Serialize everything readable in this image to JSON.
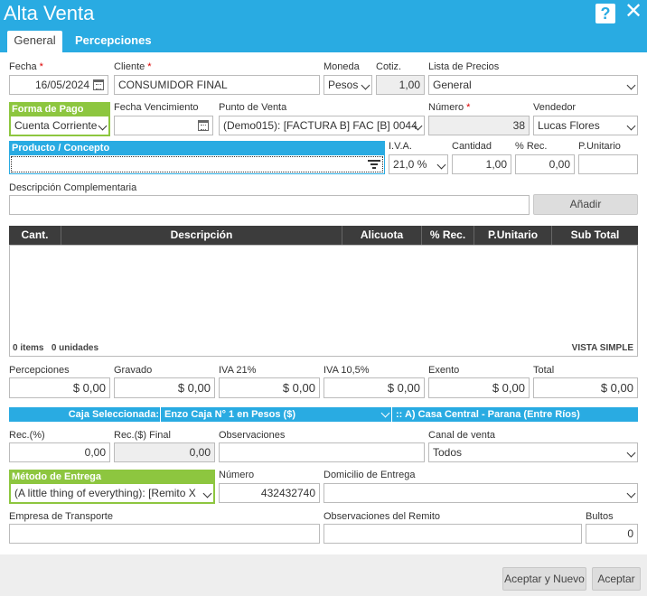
{
  "window": {
    "title": "Alta Venta"
  },
  "tabs": [
    {
      "label": "General"
    },
    {
      "label": "Percepciones"
    }
  ],
  "fields": {
    "fecha": {
      "label": "Fecha",
      "value": "16/05/2024"
    },
    "cliente": {
      "label": "Cliente",
      "value": "CONSUMIDOR FINAL"
    },
    "moneda": {
      "label": "Moneda",
      "value": "Pesos"
    },
    "cotiz": {
      "label": "Cotiz.",
      "value": "1,00"
    },
    "lista_precios": {
      "label": "Lista de Precios",
      "value": "General"
    },
    "forma_pago": {
      "label": "Forma de Pago",
      "value": "Cuenta Corriente"
    },
    "fecha_vencimiento": {
      "label": "Fecha Vencimiento",
      "value": ""
    },
    "punto_venta": {
      "label": "Punto de Venta",
      "value": "(Demo015): [FACTURA B] FAC [B] 0044"
    },
    "numero": {
      "label": "Número",
      "value": "38"
    },
    "vendedor": {
      "label": "Vendedor",
      "value": "Lucas Flores"
    },
    "producto": {
      "label": "Producto / Concepto",
      "value": ""
    },
    "iva": {
      "label": "I.V.A.",
      "value": "21,0 %"
    },
    "cantidad": {
      "label": "Cantidad",
      "value": "1,00"
    },
    "rec": {
      "label": "% Rec.",
      "value": "0,00"
    },
    "punitario": {
      "label": "P.Unitario",
      "value": ""
    },
    "desc_comp": {
      "label": "Descripción Complementaria",
      "value": ""
    },
    "add_label": "Añadir"
  },
  "grid": {
    "columns": [
      "Cant.",
      "Descripción",
      "Alicuota",
      "% Rec.",
      "P.Unitario",
      "Sub Total"
    ],
    "items_count": "0 items",
    "units_count": "0 unidades",
    "view_mode": "VISTA SIMPLE"
  },
  "totals": [
    {
      "label": "Percepciones",
      "value": "$  0,00"
    },
    {
      "label": "Gravado",
      "value": "$  0,00"
    },
    {
      "label": "IVA 21%",
      "value": "$  0,00"
    },
    {
      "label": "IVA 10,5%",
      "value": "$  0,00"
    },
    {
      "label": "Exento",
      "value": "$  0,00"
    },
    {
      "label": "Total",
      "value": "$  0,00"
    }
  ],
  "caja": {
    "label": "Caja Seleccionada:",
    "value": "Enzo Caja N° 1 en Pesos ($)",
    "branch": ":: A) Casa Central - Parana (Entre Ríos)"
  },
  "rec_fields": {
    "rec_pct": {
      "label": "Rec.(%)",
      "value": "0,00"
    },
    "rec_final": {
      "label": "Rec.($) Final",
      "value": "0,00"
    },
    "observaciones": {
      "label": "Observaciones",
      "value": ""
    },
    "canal": {
      "label": "Canal de venta",
      "value": "Todos"
    }
  },
  "entrega": {
    "metodo": {
      "label": "Método de Entrega",
      "value": "(A little thing of everything): [Remito X"
    },
    "numero": {
      "label": "Número",
      "value": "432432740"
    },
    "domicilio": {
      "label": "Domicilio de Entrega",
      "value": ""
    },
    "empresa": {
      "label": "Empresa de Transporte",
      "value": ""
    },
    "obs_remito": {
      "label": "Observaciones del Remito",
      "value": ""
    },
    "bultos": {
      "label": "Bultos",
      "value": "0"
    }
  },
  "footer": {
    "accept_new": "Aceptar y Nuevo",
    "accept": "Aceptar"
  },
  "colors": {
    "header": "#29abe2",
    "green": "#8dc63f",
    "grid_header": "#3c3c3c"
  }
}
